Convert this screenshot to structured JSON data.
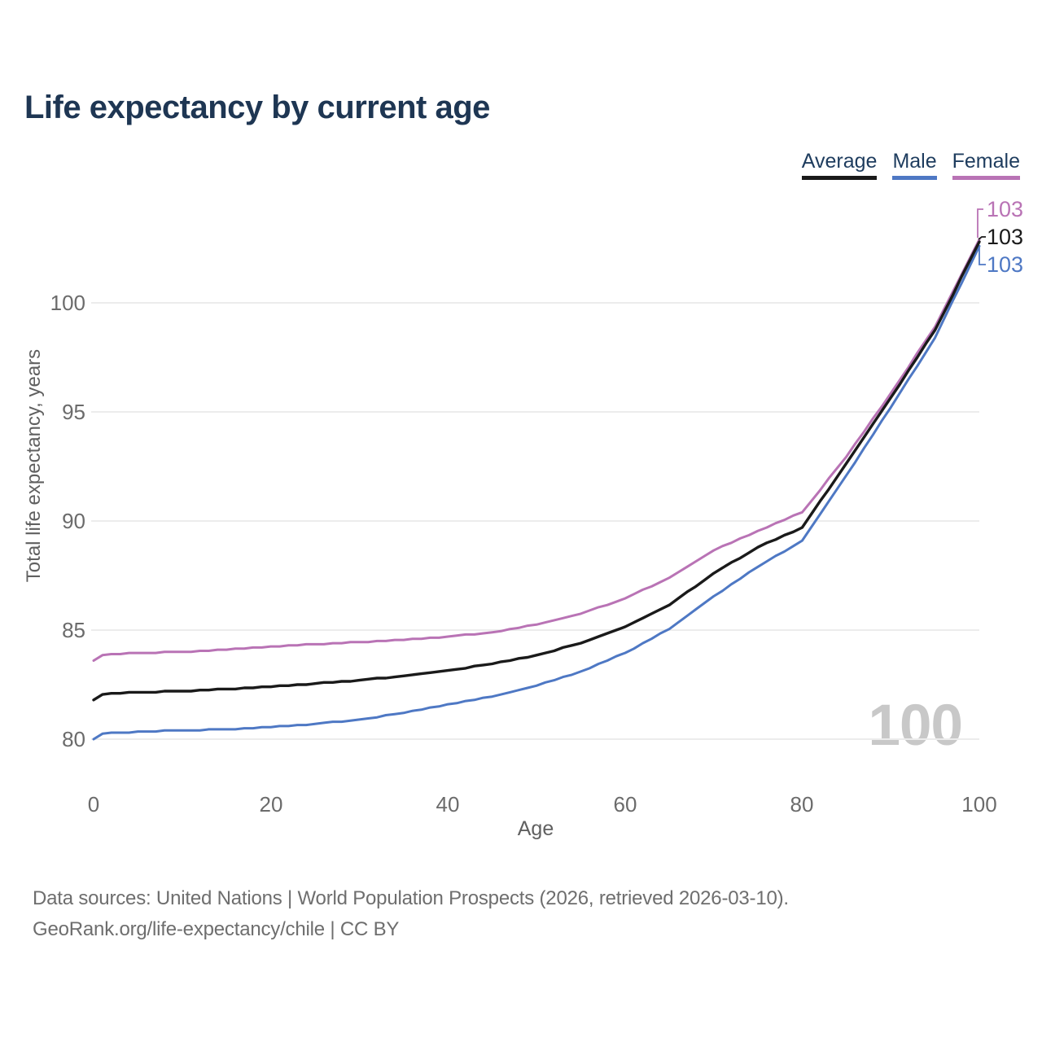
{
  "title": "Life expectancy by current age",
  "legend": {
    "items": [
      {
        "label": "Average"
      },
      {
        "label": "Male"
      },
      {
        "label": "Female"
      }
    ]
  },
  "axes": {
    "y_label": "Total life expectancy, years",
    "x_label": "Age",
    "y_ticks": [
      "80",
      "85",
      "90",
      "95",
      "100"
    ],
    "x_ticks": [
      "0",
      "20",
      "40",
      "60",
      "80",
      "100"
    ]
  },
  "watermark": "100",
  "footer": {
    "line1": "Data sources: United Nations | World Population Prospects (2026, retrieved 2026-03-10).",
    "line2": "GeoRank.org/life-expectancy/chile | CC BY"
  },
  "colors": {
    "average": "#1a1a1a",
    "male": "#4e78c4",
    "female": "#b973b5",
    "title_navy": "#1e3653",
    "gridline": "#ececec",
    "tick_gray": "#6b6b6b",
    "watermark_gray": "#c8c8c8"
  },
  "chart_data": {
    "type": "line",
    "title": "Life expectancy by current age",
    "xlabel": "Age",
    "ylabel": "Total life expectancy, years",
    "x_range": [
      0,
      100
    ],
    "ylim": [
      79.5,
      103.5
    ],
    "grid": "horizontal",
    "legend_position": "top-right",
    "x": [
      0,
      1,
      5,
      10,
      15,
      20,
      25,
      30,
      35,
      40,
      45,
      50,
      55,
      60,
      65,
      70,
      75,
      80,
      85,
      90,
      95,
      100
    ],
    "series": [
      {
        "name": "Average",
        "color": "#1a1a1a",
        "end_label": "103",
        "values": [
          81.8,
          82.05,
          82.15,
          82.2,
          82.3,
          82.4,
          82.55,
          82.7,
          82.9,
          83.15,
          83.45,
          83.85,
          84.4,
          85.15,
          86.15,
          87.6,
          88.8,
          89.7,
          92.65,
          95.65,
          98.75,
          102.8
        ]
      },
      {
        "name": "Male",
        "color": "#4e78c4",
        "end_label": "103",
        "values": [
          80.0,
          80.25,
          80.35,
          80.4,
          80.45,
          80.55,
          80.7,
          80.9,
          81.2,
          81.6,
          81.95,
          82.45,
          83.1,
          83.95,
          85.05,
          86.55,
          87.9,
          89.1,
          92.1,
          95.2,
          98.4,
          102.6
        ]
      },
      {
        "name": "Female",
        "color": "#b973b5",
        "end_label": "103",
        "values": [
          83.6,
          83.85,
          83.95,
          84.0,
          84.1,
          84.25,
          84.35,
          84.45,
          84.55,
          84.7,
          84.9,
          85.25,
          85.75,
          86.45,
          87.4,
          88.65,
          89.55,
          90.4,
          92.95,
          95.85,
          98.9,
          102.9
        ]
      }
    ]
  }
}
